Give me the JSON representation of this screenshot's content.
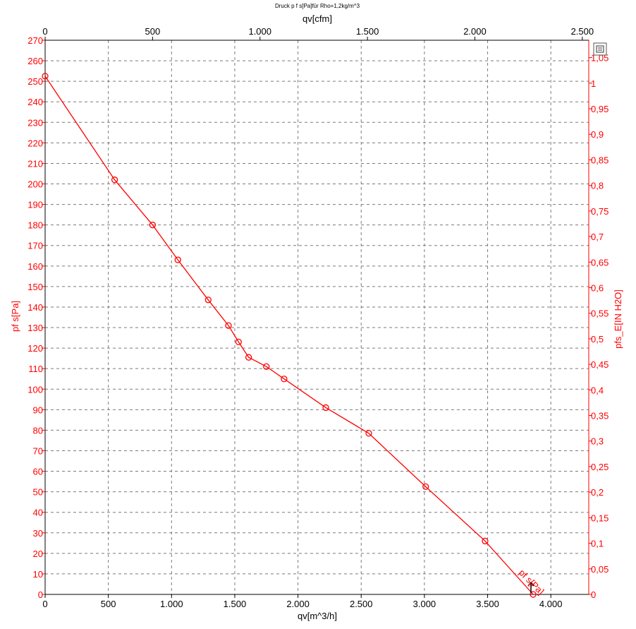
{
  "colors": {
    "series": "#ff0000",
    "grid": "#7a7a7a",
    "axis": "#000000"
  },
  "icons": {
    "toolbar": "zoom-fit-icon"
  },
  "chart_data": {
    "type": "line",
    "title": "Druck p f s[Pa]für Rho=1,2kg/m^3",
    "xlabel": "qv[m^3/h]",
    "x2label": "qv[cfm]",
    "ylabel": "pf s[Pa]",
    "y2label": "pfs_E[IN H2O]",
    "xlim": [
      0,
      4300
    ],
    "x2lim": [
      0,
      2530
    ],
    "ylim": [
      0,
      270
    ],
    "y2lim": [
      0,
      1.084
    ],
    "x_ticks": [
      0,
      500,
      1000,
      1500,
      2000,
      2500,
      3000,
      3500,
      4000
    ],
    "x_tick_labels": [
      "0",
      "500",
      "1.000",
      "1.500",
      "2.000",
      "2.500",
      "3.000",
      "3.500",
      "4.000"
    ],
    "x2_ticks": [
      0,
      500,
      1000,
      1500,
      2000,
      2500
    ],
    "x2_tick_labels": [
      "0",
      "500",
      "1.000",
      "1.500",
      "2.000",
      "2.500"
    ],
    "y_ticks": [
      0,
      10,
      20,
      30,
      40,
      50,
      60,
      70,
      80,
      90,
      100,
      110,
      120,
      130,
      140,
      150,
      160,
      170,
      180,
      190,
      200,
      210,
      220,
      230,
      240,
      250,
      260,
      270
    ],
    "y2_ticks": [
      0,
      0.05,
      0.1,
      0.15,
      0.2,
      0.25,
      0.3,
      0.35,
      0.4,
      0.45,
      0.5,
      0.55,
      0.6,
      0.65,
      0.7,
      0.75,
      0.8,
      0.85,
      0.9,
      0.95,
      1,
      1.05
    ],
    "y2_tick_labels": [
      "0",
      "0,05",
      "0,1",
      "0,15",
      "0,2",
      "0,25",
      "0,3",
      "0,35",
      "0,4",
      "0,45",
      "0,5",
      "0,55",
      "0,6",
      "0,65",
      "0,7",
      "0,75",
      "0,8",
      "0,85",
      "0,9",
      "0,95",
      "1",
      "1,05"
    ],
    "grid": true,
    "series": [
      {
        "name": "pf s[Pa]",
        "x": [
          0,
          550,
          850,
          1050,
          1290,
          1450,
          1530,
          1610,
          1750,
          1890,
          2220,
          2560,
          3010,
          3480,
          3860
        ],
        "y": [
          252.5,
          202,
          180,
          163,
          143.5,
          131,
          123,
          115.5,
          111,
          105,
          91,
          78.5,
          52.5,
          26,
          0
        ],
        "markers": true
      }
    ],
    "annotations": [
      "pf s[Pa]"
    ]
  }
}
